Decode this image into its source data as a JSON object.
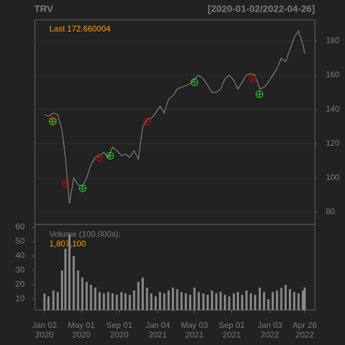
{
  "chart_data": {
    "type": "line",
    "title": "TRV",
    "subtitle": "[2020-01-02/2022-04-26]",
    "last_label": "Last 172.660004",
    "x": [
      "2020-01-02",
      "2020-01-15",
      "2020-01-31",
      "2020-02-14",
      "2020-02-28",
      "2020-03-10",
      "2020-03-23",
      "2020-04-06",
      "2020-04-20",
      "2020-05-04",
      "2020-05-18",
      "2020-06-01",
      "2020-06-15",
      "2020-06-29",
      "2020-07-13",
      "2020-07-27",
      "2020-08-10",
      "2020-08-24",
      "2020-09-08",
      "2020-09-21",
      "2020-10-05",
      "2020-10-19",
      "2020-11-02",
      "2020-11-16",
      "2020-11-30",
      "2020-12-14",
      "2020-12-28",
      "2021-01-11",
      "2021-01-25",
      "2021-02-08",
      "2021-02-22",
      "2021-03-08",
      "2021-03-22",
      "2021-04-05",
      "2021-04-19",
      "2021-05-03",
      "2021-05-17",
      "2021-06-01",
      "2021-06-15",
      "2021-06-29",
      "2021-07-13",
      "2021-07-27",
      "2021-08-10",
      "2021-08-24",
      "2021-09-08",
      "2021-09-21",
      "2021-10-05",
      "2021-10-19",
      "2021-11-02",
      "2021-11-16",
      "2021-12-01",
      "2021-12-15",
      "2021-12-29",
      "2022-01-12",
      "2022-01-26",
      "2022-02-09",
      "2022-02-23",
      "2022-03-09",
      "2022-03-23",
      "2022-04-06",
      "2022-04-20",
      "2022-04-26"
    ],
    "series": [
      {
        "color": "#7f7f7f",
        "values": [
          137,
          136,
          138,
          137,
          128,
          112,
          85,
          100,
          96,
          95,
          100,
          108,
          112,
          113,
          115,
          112,
          118,
          116,
          113,
          114,
          112,
          116,
          111,
          130,
          134,
          135,
          138,
          142,
          138,
          146,
          148,
          152,
          153,
          154,
          155,
          158,
          160,
          158,
          154,
          150,
          150,
          152,
          158,
          160,
          157,
          152,
          156,
          160,
          161,
          160,
          152,
          153,
          156,
          160,
          164,
          170,
          168,
          175,
          182,
          186,
          178,
          172.660004
        ]
      }
    ],
    "xlim": [
      "2019-12-02",
      "2022-05-29"
    ],
    "ylim": [
      72.8,
      192.4
    ],
    "yticks": [
      80,
      100,
      120,
      140,
      160,
      180
    ],
    "grid": true,
    "xticks": [
      {
        "value": "2020-01-02",
        "label": "Jan 02"
      },
      {
        "value": "2020-05-01",
        "label": "May 01"
      },
      {
        "value": "2020-09-01",
        "label": "Sep 01"
      },
      {
        "value": "2021-01-04",
        "label": "Jan 04"
      },
      {
        "value": "2021-05-03",
        "label": "May 03"
      },
      {
        "value": "2021-09-01",
        "label": "Sep 01"
      },
      {
        "value": "2022-01-03",
        "label": "Jan 03"
      },
      {
        "value": "2022-04-26",
        "label": "Apr 26"
      }
    ],
    "xtick_years": [
      "2020",
      "2020",
      "2020",
      "2021",
      "2021",
      "2021",
      "2022",
      "2022"
    ],
    "sell": {
      "color": "#b01010",
      "x": [
        "2020-01-29",
        "2020-03-11",
        "2020-06-27",
        "2020-11-30",
        "2021-11-08"
      ],
      "values": [
        134,
        97,
        112,
        133,
        158
      ]
    },
    "buy": {
      "color": "#22cc22",
      "x": [
        "2020-01-29",
        "2020-05-05",
        "2020-08-02",
        "2021-05-03",
        "2021-11-30"
      ],
      "values": [
        133,
        94,
        113,
        156,
        149
      ]
    },
    "volume": {
      "label": "Volume (100,000s):",
      "last_label": "1,807,100",
      "color": "#8a8a8a",
      "values": [
        14,
        12,
        16,
        15,
        30,
        45,
        55,
        40,
        30,
        25,
        22,
        20,
        18,
        15,
        14,
        15,
        14,
        13,
        15,
        14,
        13,
        16,
        22,
        25,
        18,
        14,
        12,
        15,
        14,
        16,
        18,
        17,
        15,
        14,
        13,
        18,
        15,
        14,
        13,
        16,
        14,
        15,
        13,
        12,
        14,
        15,
        13,
        16,
        14,
        13,
        18,
        15,
        10,
        15,
        16,
        18,
        20,
        17,
        15,
        14,
        16,
        18.071
      ],
      "ylim": [
        2.4,
        61.9
      ],
      "yticks": [
        10,
        20,
        30,
        40,
        50,
        60
      ]
    }
  }
}
